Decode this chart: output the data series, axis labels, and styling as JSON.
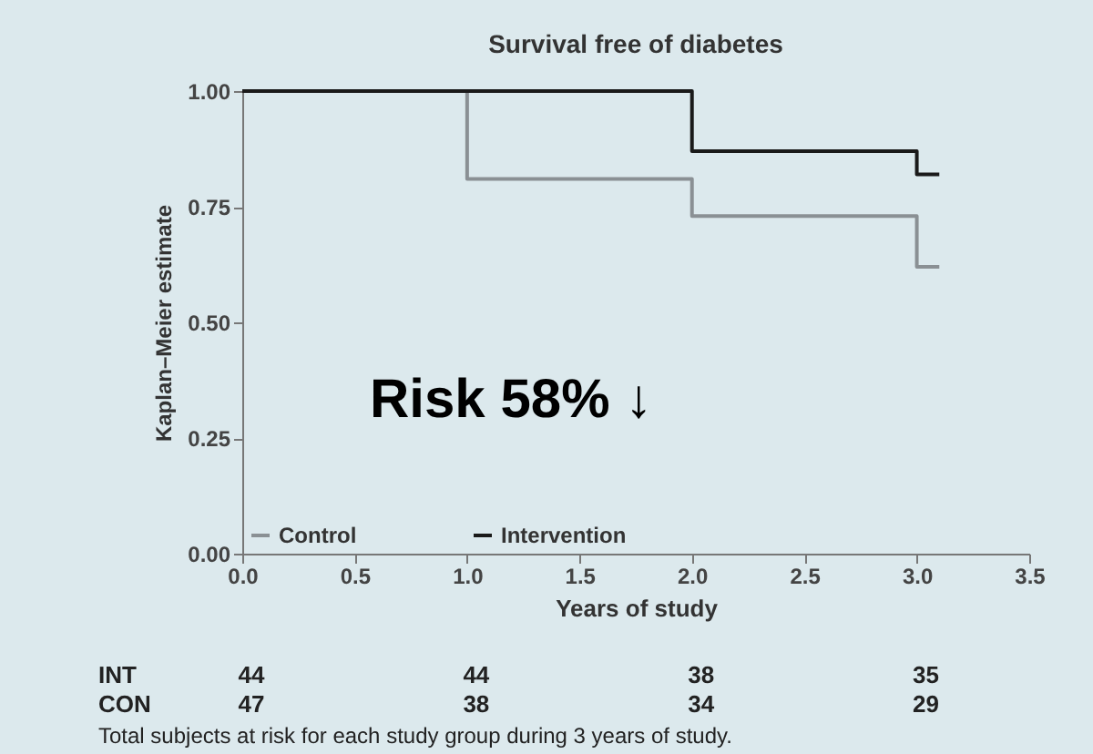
{
  "chart_data": {
    "type": "step",
    "title": "Survival free of diabetes",
    "xlabel": "Years of study",
    "ylabel": "Kaplan–Meier estimate",
    "xlim": [
      0,
      3.5
    ],
    "xticks": [
      {
        "value": 0,
        "label": "0.0"
      },
      0.5,
      {
        "value": 1,
        "label": "1.0"
      },
      1.5,
      {
        "value": 2,
        "label": "2.0"
      },
      2.5,
      {
        "value": 3,
        "label": "3.0"
      },
      3.5
    ],
    "ylim": [
      0,
      1
    ],
    "yticks": [
      {
        "value": 0,
        "label": "0.00"
      },
      0.25,
      {
        "value": 0.5,
        "label": "0.50"
      },
      0.75,
      {
        "value": 1,
        "label": "1.00"
      }
    ],
    "grid": false,
    "legend": "bottom left",
    "line_style": "solid",
    "marker": "none",
    "series": [
      {
        "name": "Control",
        "color": "#8a9094",
        "x": [
          0,
          1,
          2,
          3,
          3.1
        ],
        "values": [
          1,
          0.81,
          0.73,
          0.62,
          0.62
        ]
      },
      {
        "name": "Intervention",
        "color": "#1a1a1a",
        "x": [
          0,
          2,
          3,
          3.1
        ],
        "values": [
          1,
          0.87,
          0.82,
          0.82
        ]
      }
    ],
    "annotations": [
      "Risk 58% ↓",
      "INT",
      "44",
      "44",
      "38",
      "35",
      "CON",
      "47",
      "38",
      "34",
      "29",
      "Total subjects at risk for each study group during 3 years of study."
    ]
  }
}
